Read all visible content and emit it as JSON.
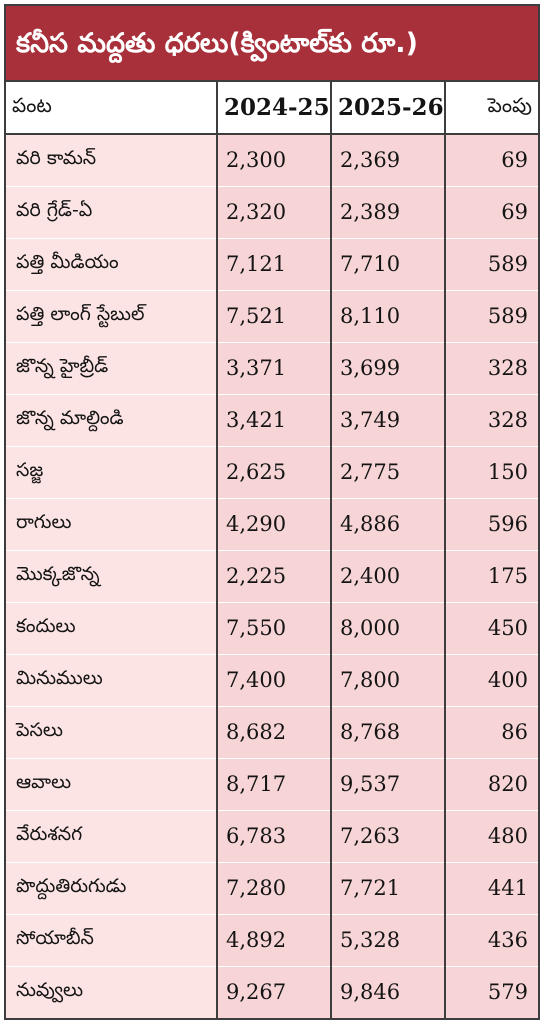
{
  "title": "కనీస మద్దతు ధరలు(క్వింటాల్‌కు రూ.)",
  "columns": {
    "crop": "పంట",
    "year1": "2024-25",
    "year2": "2025-26",
    "increase": "పెంపు"
  },
  "rows": [
    {
      "crop": "వరి కామన్",
      "y1": "2,300",
      "y2": "2,369",
      "inc": "69"
    },
    {
      "crop": "వరి గ్రేడ్-ఏ",
      "y1": "2,320",
      "y2": "2,389",
      "inc": "69"
    },
    {
      "crop": "పత్తి మీడియం",
      "y1": "7,121",
      "y2": "7,710",
      "inc": "589"
    },
    {
      "crop": "పత్తి లాంగ్ స్టేబుల్",
      "y1": "7,521",
      "y2": "8,110",
      "inc": "589"
    },
    {
      "crop": "జొన్న హైబ్రీడ్",
      "y1": "3,371",
      "y2": "3,699",
      "inc": "328"
    },
    {
      "crop": "జొన్న మాల్దిండి",
      "y1": "3,421",
      "y2": "3,749",
      "inc": "328"
    },
    {
      "crop": "సజ్జ",
      "y1": "2,625",
      "y2": "2,775",
      "inc": "150"
    },
    {
      "crop": "రాగులు",
      "y1": "4,290",
      "y2": "4,886",
      "inc": "596"
    },
    {
      "crop": "మొక్కజొన్న",
      "y1": "2,225",
      "y2": "2,400",
      "inc": "175"
    },
    {
      "crop": "కందులు",
      "y1": "7,550",
      "y2": "8,000",
      "inc": "450"
    },
    {
      "crop": "మినుములు",
      "y1": "7,400",
      "y2": "7,800",
      "inc": "400"
    },
    {
      "crop": "పెసలు",
      "y1": "8,682",
      "y2": "8,768",
      "inc": "86"
    },
    {
      "crop": "ఆవాలు",
      "y1": "8,717",
      "y2": "9,537",
      "inc": "820"
    },
    {
      "crop": "వేరుశనగ",
      "y1": "6,783",
      "y2": "7,263",
      "inc": "480"
    },
    {
      "crop": "పొద్దుతిరుగుడు",
      "y1": "7,280",
      "y2": "7,721",
      "inc": "441"
    },
    {
      "crop": "సోయాబీన్",
      "y1": "4,892",
      "y2": "5,328",
      "inc": "436"
    },
    {
      "crop": "నువ్వులు",
      "y1": "9,267",
      "y2": "9,846",
      "inc": "579"
    }
  ],
  "colors": {
    "title_bg": "#a8303a",
    "title_text": "#ffffff",
    "row_bg": "#fde4e4",
    "number_bg": "#f7d5d6",
    "border": "#3d3d3d"
  }
}
